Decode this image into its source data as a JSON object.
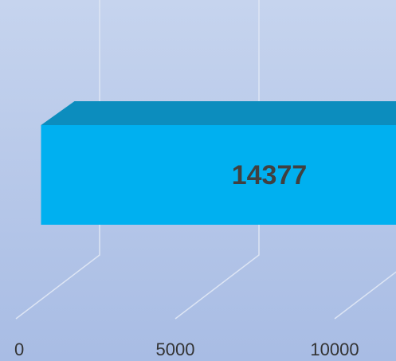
{
  "chart_data": {
    "type": "bar",
    "orientation": "horizontal",
    "values": [
      14377
    ],
    "value_labels": [
      "14377"
    ],
    "color": "#00b0f0",
    "xlim": [
      0,
      10000
    ],
    "xticks": [
      0,
      5000,
      10000
    ],
    "grid": true
  }
}
